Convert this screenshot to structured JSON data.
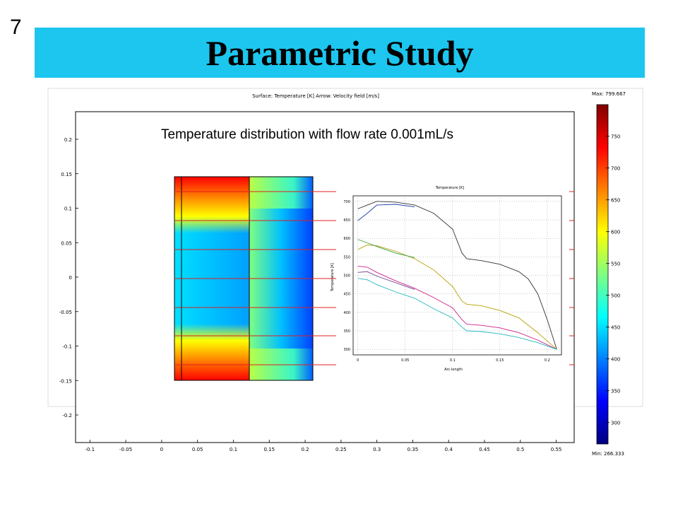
{
  "slide": {
    "number": "7",
    "title": "Parametric Study",
    "caption": "Temperature distribution with flow rate 0.001mL/s"
  },
  "main_plot": {
    "header": "Surface: Temperature [K]   Arrow: Velocity field [m/s]",
    "x_ticks": [
      "-0.1",
      "-0.05",
      "0",
      "0.05",
      "0.1",
      "0.15",
      "0.2",
      "0.25",
      "0.3",
      "0.35",
      "0.4",
      "0.45",
      "0.5",
      "0.55"
    ],
    "y_ticks": [
      "0.2",
      "0.15",
      "0.1",
      "0.05",
      "0",
      "-0.05",
      "-0.1",
      "-0.15",
      "-0.2"
    ],
    "xlim": [
      -0.12,
      0.575
    ],
    "ylim": [
      -0.24,
      0.24
    ]
  },
  "colorbar": {
    "max_label": "Max: 799.667",
    "min_label": "Min: 266.333",
    "ticks": [
      "750",
      "700",
      "650",
      "600",
      "550",
      "500",
      "450",
      "400",
      "350",
      "300"
    ],
    "range": [
      266.333,
      799.667
    ],
    "colors": [
      "#7f0000",
      "#ff0000",
      "#ff8000",
      "#ffff00",
      "#80ff80",
      "#00ffff",
      "#0080ff",
      "#0000ff",
      "#00007f"
    ]
  },
  "inset_chart": {
    "chart_data": {
      "type": "line",
      "title": "Temperature [K]",
      "xlabel": "Arc-length",
      "ylabel": "Temperature [K]",
      "xlim": [
        -0.005,
        0.215
      ],
      "ylim": [
        285,
        715
      ],
      "x_ticks": [
        "0",
        "0.05",
        "0.1",
        "0.15",
        "0.2"
      ],
      "y_ticks": [
        "700",
        "650",
        "600",
        "550",
        "500",
        "450",
        "400",
        "350",
        "300"
      ],
      "grid": true,
      "series": [
        {
          "color": "#333333",
          "x": [
            0,
            0.01,
            0.02,
            0.04,
            0.06,
            0.08,
            0.1,
            0.11,
            0.115,
            0.13,
            0.15,
            0.17,
            0.18,
            0.19,
            0.2,
            0.21
          ],
          "y": [
            680,
            690,
            700,
            698,
            690,
            668,
            625,
            560,
            545,
            540,
            530,
            510,
            490,
            450,
            380,
            300
          ]
        },
        {
          "color": "#1f3aa8",
          "x": [
            0,
            0.01,
            0.02,
            0.04,
            0.06
          ],
          "y": [
            648,
            668,
            690,
            692,
            685
          ]
        },
        {
          "color": "#b8a000",
          "x": [
            0,
            0.01,
            0.02,
            0.04,
            0.06,
            0.08,
            0.1,
            0.11,
            0.115,
            0.13,
            0.15,
            0.17,
            0.19,
            0.21
          ],
          "y": [
            570,
            582,
            580,
            565,
            545,
            515,
            470,
            430,
            422,
            418,
            405,
            385,
            345,
            300
          ]
        },
        {
          "color": "#3aa03a",
          "x": [
            0,
            0.01,
            0.02,
            0.04,
            0.06
          ],
          "y": [
            597,
            588,
            578,
            560,
            548
          ]
        },
        {
          "color": "#d0208a",
          "x": [
            0,
            0.01,
            0.02,
            0.04,
            0.06,
            0.08,
            0.1,
            0.11,
            0.115,
            0.13,
            0.15,
            0.17,
            0.19,
            0.21
          ],
          "y": [
            525,
            522,
            508,
            485,
            465,
            440,
            412,
            380,
            368,
            365,
            358,
            345,
            325,
            300
          ]
        },
        {
          "color": "#6a3a8a",
          "x": [
            0,
            0.01,
            0.02,
            0.04,
            0.06
          ],
          "y": [
            508,
            510,
            498,
            480,
            462
          ]
        },
        {
          "color": "#20b8c0",
          "x": [
            0,
            0.01,
            0.02,
            0.04,
            0.06,
            0.08,
            0.1,
            0.11,
            0.115,
            0.13,
            0.15,
            0.17,
            0.19,
            0.21
          ],
          "y": [
            492,
            488,
            475,
            455,
            438,
            410,
            385,
            360,
            350,
            348,
            342,
            332,
            318,
            300
          ]
        }
      ]
    }
  }
}
